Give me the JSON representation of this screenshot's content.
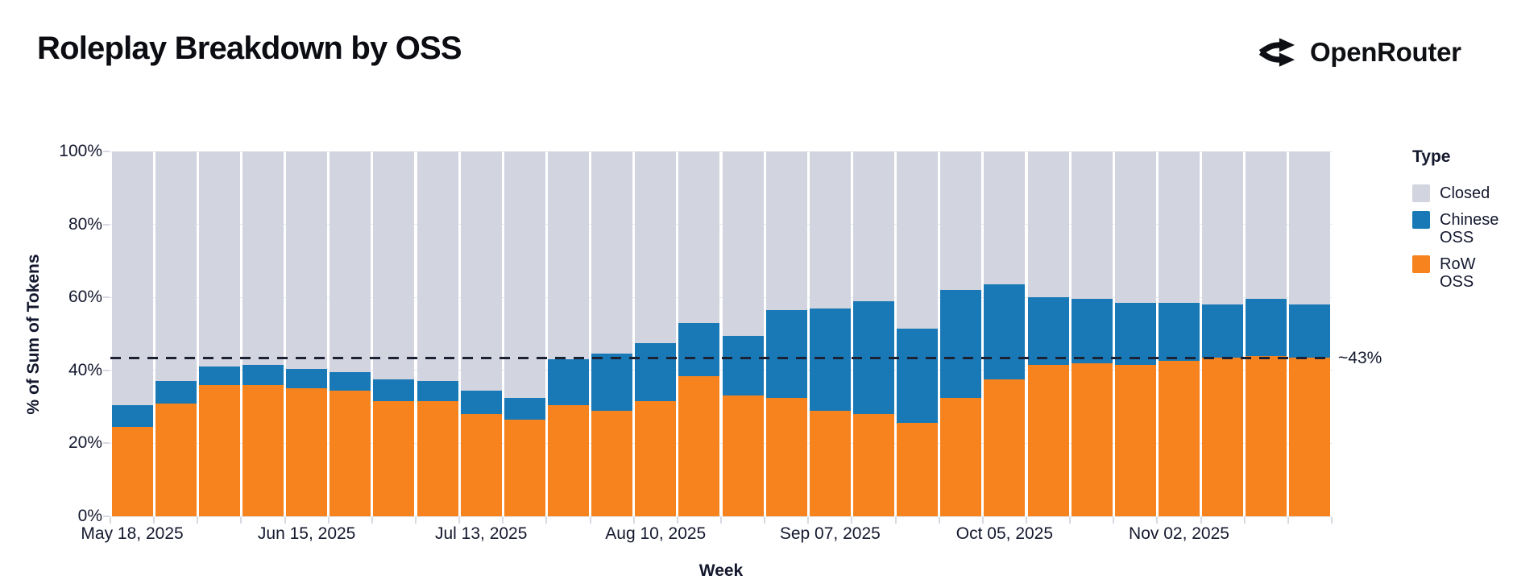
{
  "header": {
    "title": "Roleplay Breakdown by OSS",
    "brand": "OpenRouter"
  },
  "legend": {
    "title": "Type",
    "items": [
      {
        "label": "Closed",
        "color": "#d2d4df"
      },
      {
        "label": "Chinese OSS",
        "color": "#1879b6"
      },
      {
        "label": "RoW OSS",
        "color": "#f6831e"
      }
    ]
  },
  "chart_data": {
    "type": "bar",
    "stacked": true,
    "title": "Roleplay Breakdown by OSS",
    "xlabel": "Week",
    "ylabel": "% of Sum of Tokens",
    "ylim": [
      0,
      100
    ],
    "grid": true,
    "legend_position": "right",
    "y_tick_values": [
      0,
      20,
      40,
      60,
      80,
      100
    ],
    "y_tick_labels": [
      "0%",
      "20%",
      "40%",
      "60%",
      "80%",
      "100%"
    ],
    "x_tick_every": 4,
    "x_tick_labels": [
      "May 18, 2025",
      "Jun 15, 2025",
      "Jul 13, 2025",
      "Aug 10, 2025",
      "Sep 07, 2025",
      "Oct 05, 2025",
      "Nov 02, 2025"
    ],
    "categories": [
      "May 18, 2025",
      "May 25, 2025",
      "Jun 01, 2025",
      "Jun 08, 2025",
      "Jun 15, 2025",
      "Jun 22, 2025",
      "Jun 29, 2025",
      "Jul 06, 2025",
      "Jul 13, 2025",
      "Jul 20, 2025",
      "Jul 27, 2025",
      "Aug 03, 2025",
      "Aug 10, 2025",
      "Aug 17, 2025",
      "Aug 24, 2025",
      "Aug 31, 2025",
      "Sep 07, 2025",
      "Sep 14, 2025",
      "Sep 21, 2025",
      "Sep 28, 2025",
      "Oct 05, 2025",
      "Oct 12, 2025",
      "Oct 19, 2025",
      "Oct 26, 2025",
      "Nov 02, 2025",
      "Nov 09, 2025",
      "Nov 16, 2025",
      "Nov 23, 2025"
    ],
    "series": [
      {
        "name": "RoW OSS",
        "color": "#f6831e",
        "values": [
          24.5,
          31,
          36,
          36,
          35,
          34.5,
          31.5,
          31.5,
          28,
          26.5,
          30.5,
          29,
          31.5,
          38.5,
          33,
          32.5,
          29,
          28,
          25.5,
          32.5,
          37.5,
          41.5,
          42,
          41.5,
          42.5,
          43.5,
          44,
          43.5
        ]
      },
      {
        "name": "Chinese OSS",
        "color": "#1879b6",
        "values": [
          6,
          6,
          5,
          5.5,
          5.5,
          5,
          6,
          5.5,
          6.5,
          6,
          12.5,
          15.5,
          16,
          14.5,
          16.5,
          24,
          28,
          31,
          26,
          29.5,
          26,
          18.5,
          17.5,
          17,
          16,
          14.5,
          15.5,
          14.5
        ]
      },
      {
        "name": "Closed",
        "color": "#d2d4df",
        "values": [
          69.5,
          63,
          59,
          58.5,
          59.5,
          60.5,
          62.5,
          63,
          65.5,
          67.5,
          57,
          55.5,
          52.5,
          47,
          50.5,
          43.5,
          43,
          41,
          48.5,
          38,
          36.5,
          40,
          40.5,
          41.5,
          41.5,
          42,
          40.5,
          42
        ]
      }
    ],
    "annotation": {
      "label": "~43%",
      "value": 43.3,
      "line_style": "dashed",
      "line_color": "#1c2133"
    }
  }
}
